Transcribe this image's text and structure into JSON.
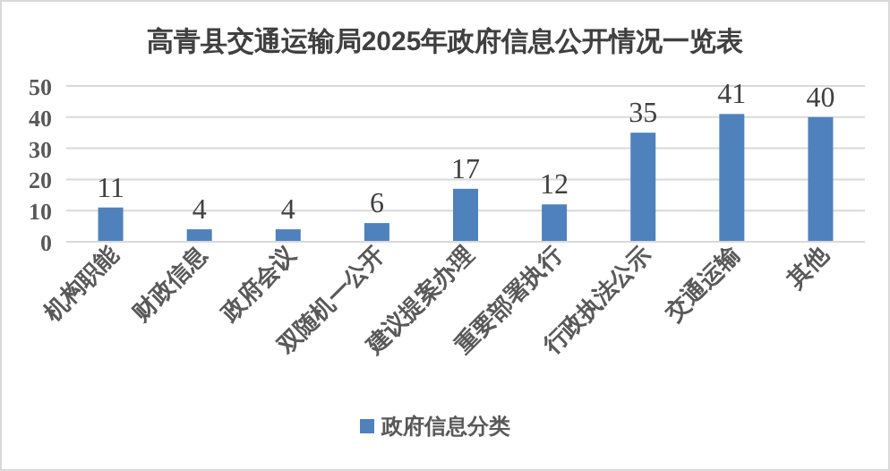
{
  "chart_data": {
    "type": "bar",
    "title": "高青县交通运输局2025年政府信息公开情况一览表",
    "categories": [
      "机构职能",
      "财政信息",
      "政府会议",
      "双随机一公开",
      "建议提案办理",
      "重要部署执行",
      "行政执法公示",
      "交通运输",
      "其他"
    ],
    "series": [
      {
        "name": "政府信息分类",
        "color": "#4f81bd",
        "values": [
          11,
          4,
          4,
          6,
          17,
          12,
          35,
          41,
          40
        ]
      }
    ],
    "ylim": [
      0,
      50
    ],
    "yticks": [
      0,
      10,
      20,
      30,
      40,
      50
    ],
    "grid": "y",
    "data_labels": true,
    "legend": "bottom"
  }
}
